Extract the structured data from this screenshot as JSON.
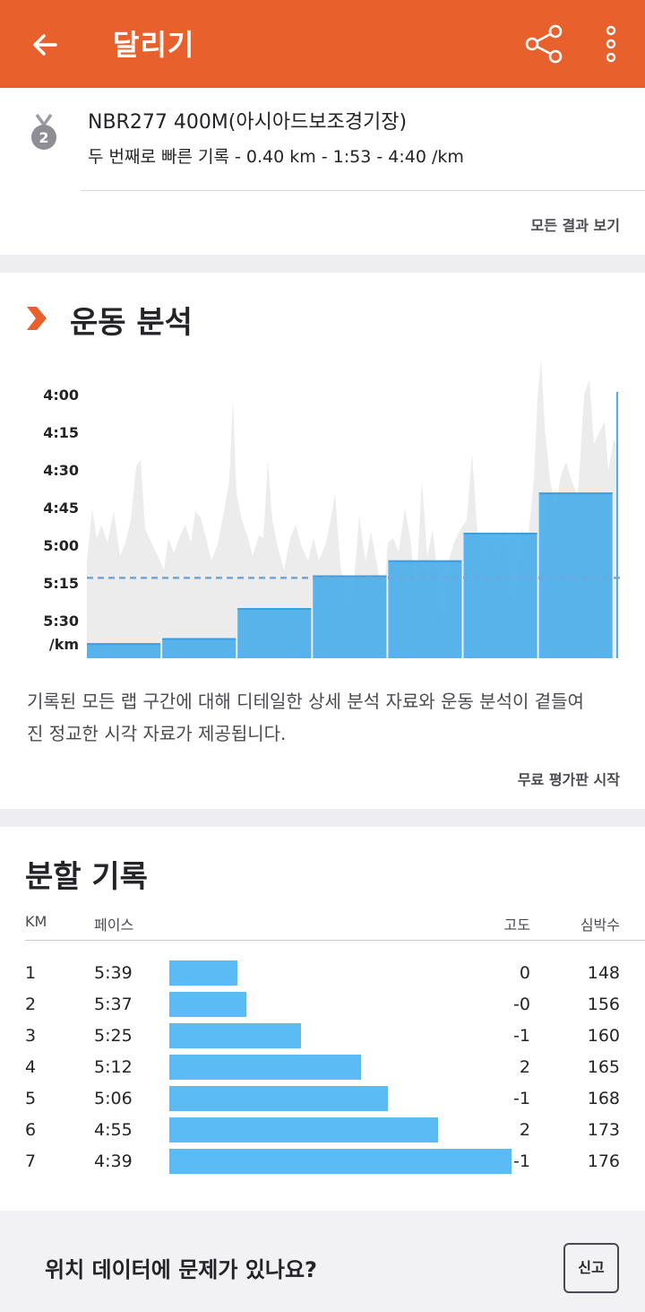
{
  "header": {
    "title": "달리기"
  },
  "segment": {
    "medal_rank": "2",
    "name": "NBR277 400M(아시아드보조경기장)",
    "detail": "두 번째로 빠른 기록 - 0.40 km - 1:53 - 4:40 /km",
    "all_results_label": "모든 결과 보기"
  },
  "analysis": {
    "title": "운동 분석",
    "description": "기록된 모든 랩 구간에 대해 디테일한 상세 분석 자료와 운동 분석이 곁들여진 정교한 시각 자료가 제공됩니다.",
    "cta_label": "무료 평가판 시작"
  },
  "chart_data": {
    "type": "bar",
    "y_tick_labels": [
      "4:00",
      "4:15",
      "4:30",
      "4:45",
      "5:00",
      "5:15",
      "5:30"
    ],
    "y_unit": "/km",
    "ylim_seconds_per_km": [
      240,
      345
    ],
    "average_pace_seconds_per_km": 313,
    "series": [
      {
        "values_seconds_per_km": [
          339,
          337,
          325,
          312,
          306,
          295,
          279
        ]
      }
    ],
    "background_trace": "pace profile (gray area)",
    "colors": {
      "bar": "#4aaee8",
      "bar_top": "#3d9ee0",
      "average_line": "#6ea8d8",
      "trace": "#ececed"
    }
  },
  "splits": {
    "title": "분할 기록",
    "headers": {
      "km": "KM",
      "pace": "페이스",
      "elev": "고도",
      "hr": "심박수"
    },
    "rows": [
      {
        "km": "1",
        "pace": "5:39",
        "elev": "0",
        "hr": "148",
        "pace_sec": 339
      },
      {
        "km": "2",
        "pace": "5:37",
        "elev": "-0",
        "hr": "156",
        "pace_sec": 337
      },
      {
        "km": "3",
        "pace": "5:25",
        "elev": "-1",
        "hr": "160",
        "pace_sec": 325
      },
      {
        "km": "4",
        "pace": "5:12",
        "elev": "2",
        "hr": "165",
        "pace_sec": 312
      },
      {
        "km": "5",
        "pace": "5:06",
        "elev": "-1",
        "hr": "168",
        "pace_sec": 306
      },
      {
        "km": "6",
        "pace": "4:55",
        "elev": "2",
        "hr": "173",
        "pace_sec": 295
      },
      {
        "km": "7",
        "pace": "4:39",
        "elev": "-1",
        "hr": "176",
        "pace_sec": 279
      }
    ]
  },
  "footer": {
    "question": "위치 데이터에 문제가 있나요?",
    "report_label": "신고"
  },
  "colors": {
    "brand": "#e8602c",
    "split_bar": "#5bbcf5"
  },
  "icons": [
    "back-arrow-icon",
    "share-icon",
    "more-vert-icon",
    "medal-icon",
    "chevron-right-icon"
  ]
}
